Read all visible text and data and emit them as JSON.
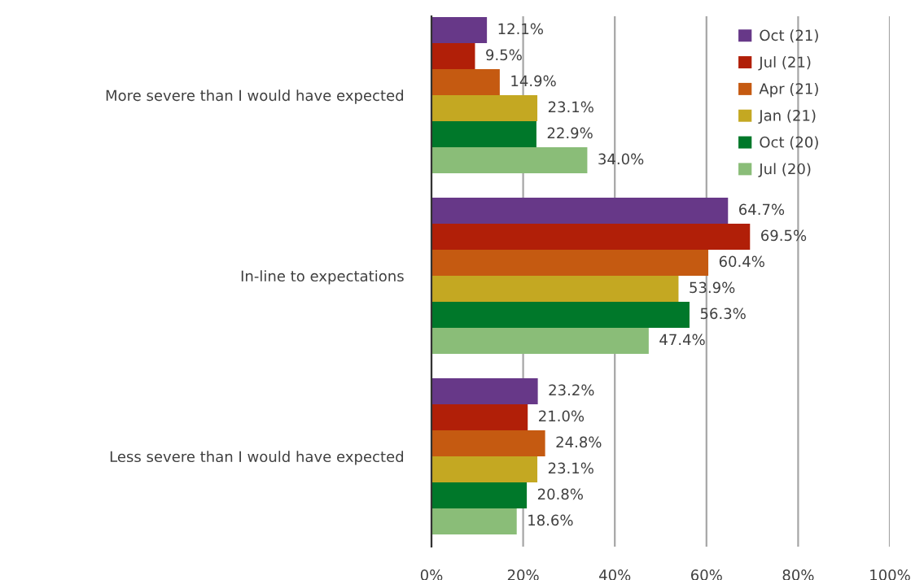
{
  "chart_data": {
    "type": "bar",
    "orientation": "horizontal",
    "categories": [
      "More severe than I would have expected",
      "In-line to expectations",
      "Less severe than I would have expected"
    ],
    "series": [
      {
        "name": "Oct (21)",
        "color": "#673888",
        "values": [
          12.1,
          64.7,
          23.2
        ],
        "value_labels": [
          "12.1%",
          "64.7%",
          "23.2%"
        ]
      },
      {
        "name": "Jul (21)",
        "color": "#b11f08",
        "values": [
          9.5,
          69.5,
          21.0
        ],
        "value_labels": [
          "9.5%",
          "69.5%",
          "21.0%"
        ]
      },
      {
        "name": "Apr (21)",
        "color": "#c55a11",
        "values": [
          14.9,
          60.4,
          24.8
        ],
        "value_labels": [
          "14.9%",
          "60.4%",
          "24.8%"
        ]
      },
      {
        "name": "Jan (21)",
        "color": "#c4a822",
        "values": [
          23.1,
          53.9,
          23.1
        ],
        "value_labels": [
          "23.1%",
          "53.9%",
          "23.1%"
        ]
      },
      {
        "name": "Oct (20)",
        "color": "#00782a",
        "values": [
          22.9,
          56.3,
          20.8
        ],
        "value_labels": [
          "22.9%",
          "56.3%",
          "20.8%"
        ]
      },
      {
        "name": "Jul (20)",
        "color": "#8abd78",
        "values": [
          34.0,
          47.4,
          18.6
        ],
        "value_labels": [
          "34.0%",
          "47.4%",
          "18.6%"
        ]
      }
    ],
    "xlim": [
      0,
      100
    ],
    "xticks": [
      {
        "value": 0,
        "label": "0%"
      },
      {
        "value": 20,
        "label": "20%"
      },
      {
        "value": 40,
        "label": "40%"
      },
      {
        "value": 60,
        "label": "60%"
      },
      {
        "value": 80,
        "label": "80%"
      },
      {
        "value": 100,
        "label": "100%"
      }
    ],
    "grid": "x",
    "legend": "top right"
  }
}
